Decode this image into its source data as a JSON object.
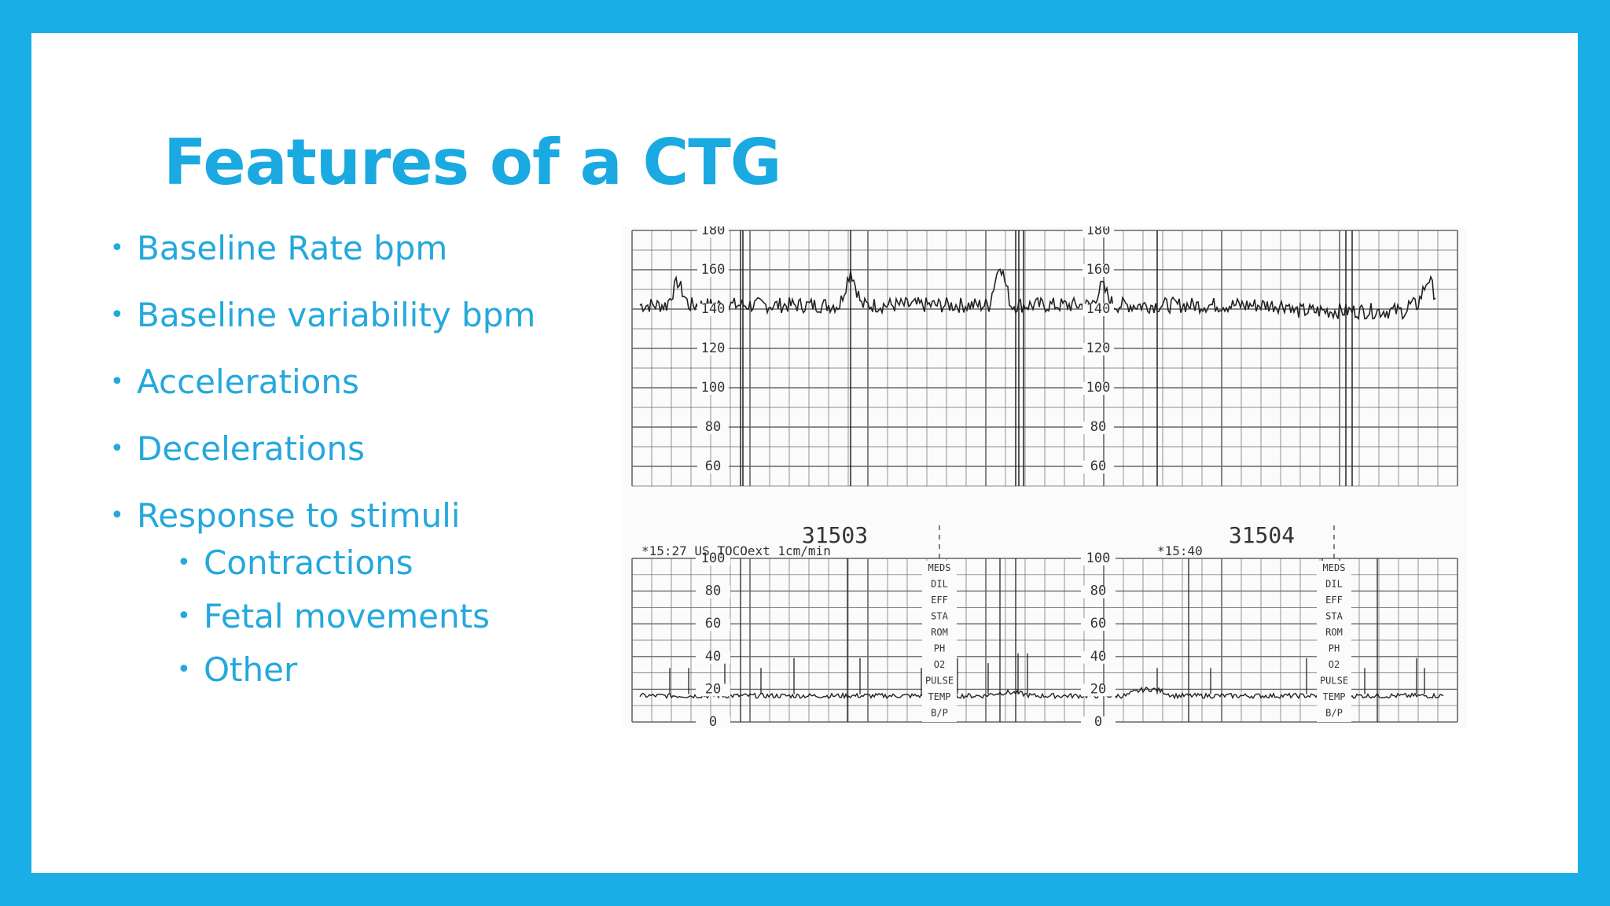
{
  "title": "Features of a CTG",
  "bullets": [
    {
      "text": "Baseline Rate bpm"
    },
    {
      "text": "Baseline variability bpm"
    },
    {
      "text": "Accelerations"
    },
    {
      "text": "Decelerations"
    },
    {
      "text": "Response to stimuli"
    }
  ],
  "sub_bullets": [
    {
      "text": "Contractions"
    },
    {
      "text": "Fetal movements"
    },
    {
      "text": "Other"
    }
  ],
  "ctg": {
    "fhr_ticks": [
      "180",
      "160",
      "140",
      "120",
      "100",
      "80",
      "60"
    ],
    "toco_ticks": [
      "100",
      "80",
      "60",
      "40",
      "20",
      "0"
    ],
    "section_numbers": [
      "31503",
      "31504"
    ],
    "timestamp_left": "*15:27 US TOCOext 1cm/min",
    "timestamp_right": "*15:40",
    "annotations": [
      "MEDS",
      "DIL",
      "EFF",
      "STA",
      "ROM",
      "PH",
      "O2",
      "PULSE",
      "TEMP",
      "B/P"
    ]
  },
  "colors": {
    "border": "#1aaee6",
    "title": "#1aa9e0",
    "text": "#25a8dc",
    "grid": "#666666",
    "trace": "#222222"
  }
}
